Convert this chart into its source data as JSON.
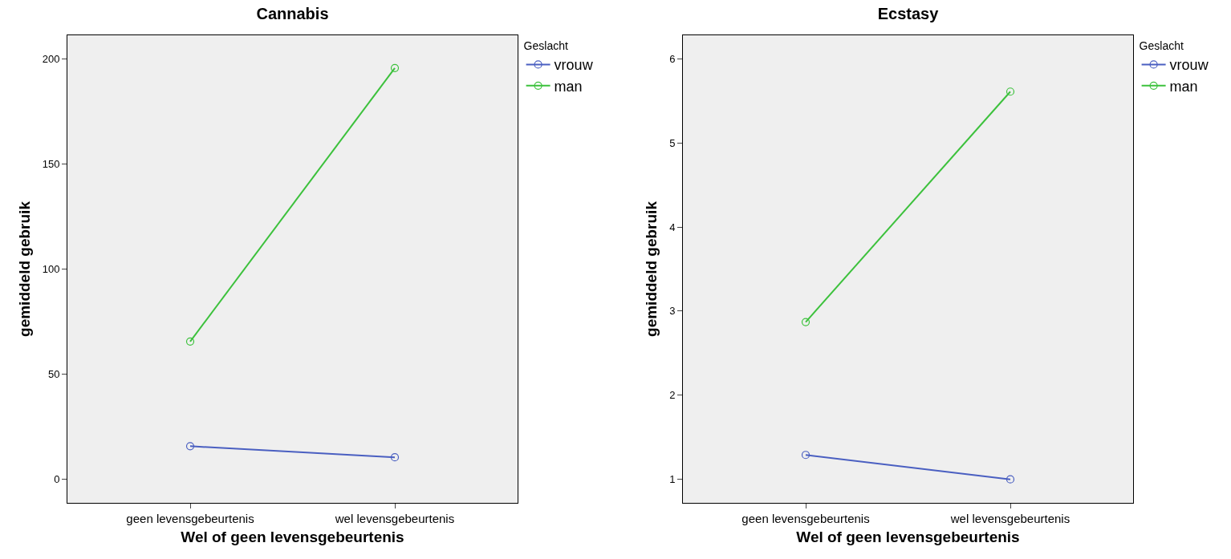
{
  "chart_data": [
    {
      "type": "line",
      "title": "Cannabis",
      "xlabel": "Wel of geen levensgebeurtenis",
      "ylabel": "gemiddeld gebruik",
      "legend_title": "Geslacht",
      "categories": [
        "geen levensgebeurtenis",
        "wel levensgebeurtenis"
      ],
      "series": [
        {
          "name": "vrouw",
          "color": "#4a5fc1",
          "values": [
            15.6,
            10.3
          ]
        },
        {
          "name": "man",
          "color": "#3cc13c",
          "values": [
            65.5,
            195.8
          ]
        }
      ],
      "ylim": [
        -11.4,
        211.4
      ],
      "yticks": [
        0,
        50,
        100,
        150,
        200
      ],
      "grid": false,
      "legend": "top right",
      "marker": "circle",
      "line_style": "solid"
    },
    {
      "type": "line",
      "title": "Ecstasy",
      "xlabel": "Wel of geen levensgebeurtenis",
      "ylabel": "gemiddeld gebruik",
      "legend_title": "Geslacht",
      "categories": [
        "geen levensgebeurtenis",
        "wel levensgebeurtenis"
      ],
      "series": [
        {
          "name": "vrouw",
          "color": "#4a5fc1",
          "values": [
            1.29,
            1.0
          ]
        },
        {
          "name": "man",
          "color": "#3cc13c",
          "values": [
            2.87,
            5.61
          ]
        }
      ],
      "ylim": [
        0.72,
        6.28
      ],
      "yticks": [
        1,
        2,
        3,
        4,
        5,
        6
      ],
      "grid": false,
      "legend": "top right",
      "marker": "circle",
      "line_style": "solid"
    }
  ]
}
